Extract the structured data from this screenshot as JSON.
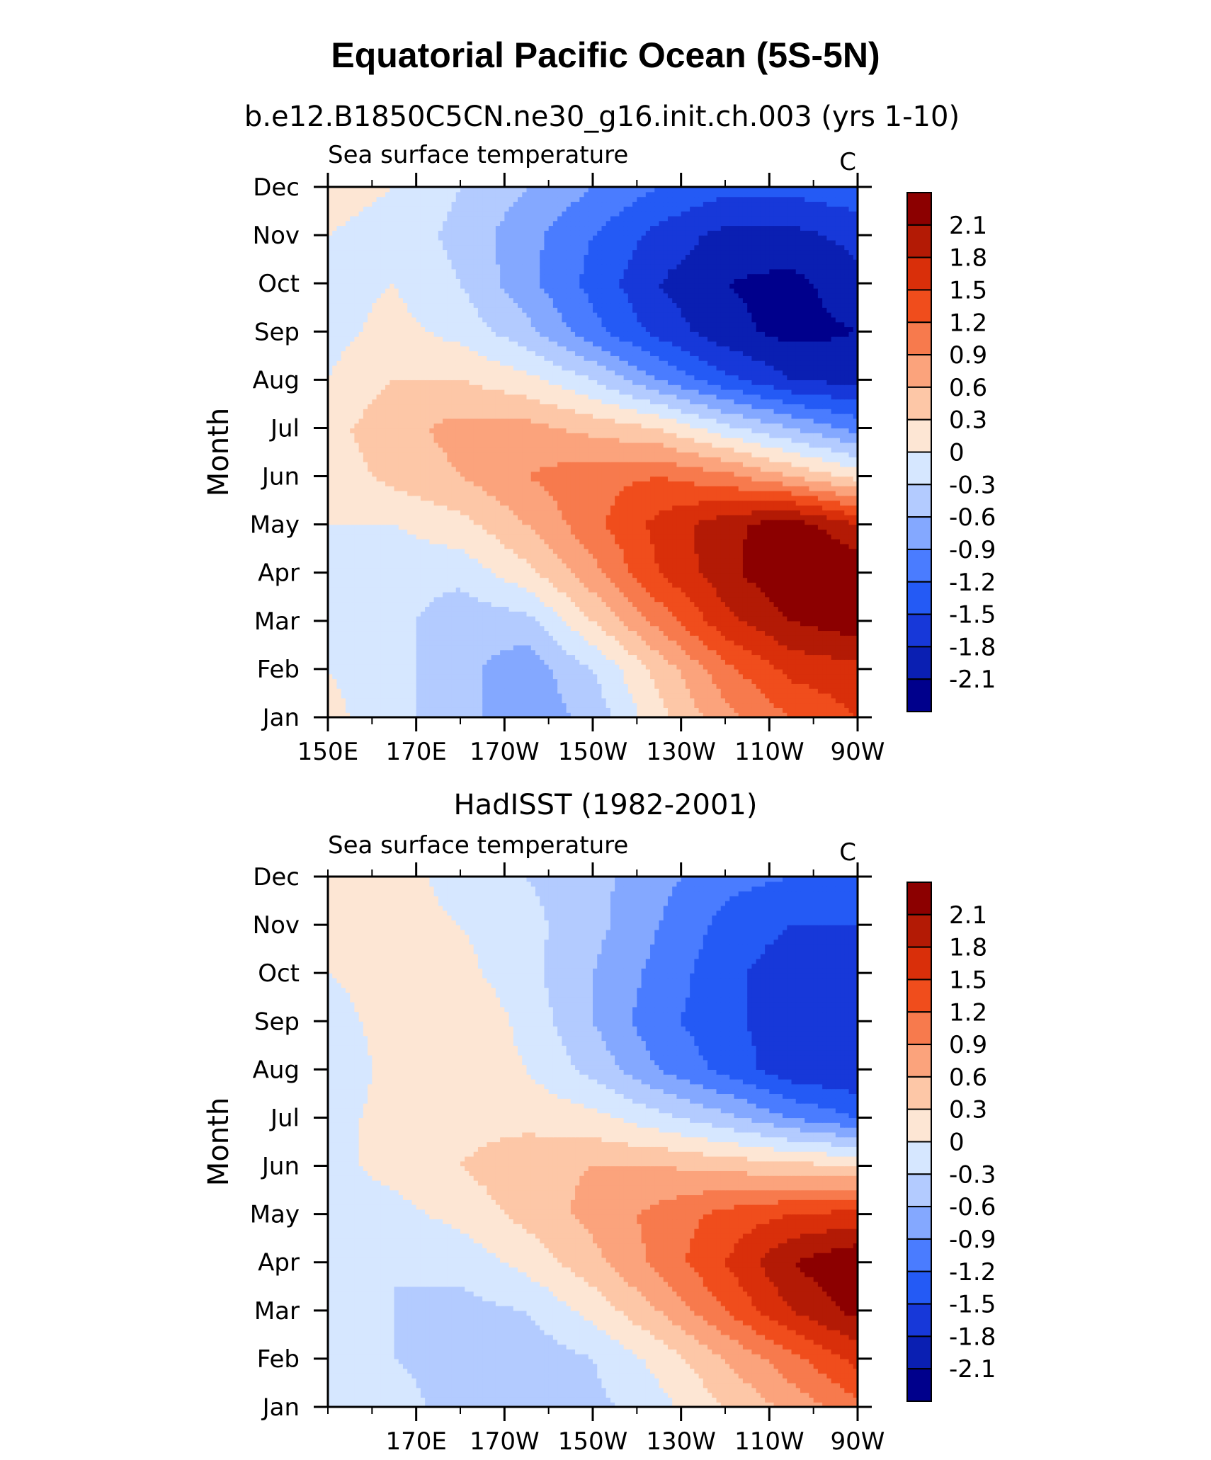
{
  "header": {
    "title": "Equatorial Pacific Ocean (5S-5N)",
    "case_title": "b.e12.B1850C5CN.ne30_g16.init.ch.003 (yrs 1-10)"
  },
  "colors": {
    "levels": [
      -2.1,
      -1.8,
      -1.5,
      -1.2,
      -0.9,
      -0.6,
      -0.3,
      0,
      0.3,
      0.6,
      0.9,
      1.2,
      1.5,
      1.8,
      2.1
    ],
    "fills": [
      "#00008c",
      "#0a1fb2",
      "#1738d9",
      "#245af5",
      "#4a7cff",
      "#84a8ff",
      "#b3cbff",
      "#d6e7ff",
      "#fde6d4",
      "#fdc7a7",
      "#fba37c",
      "#f77a4d",
      "#f04d1c",
      "#d92f0a",
      "#b31a05",
      "#8c0000"
    ]
  },
  "chart_data": [
    {
      "type": "heatmap",
      "panel_title": "",
      "left_label": "Sea surface temperature",
      "right_label": "C",
      "ylabel": "Month",
      "xlabel": "",
      "xlim": [
        150,
        270
      ],
      "x_ticks": [
        "150E",
        "170E",
        "170W",
        "150W",
        "130W",
        "110W",
        "90W"
      ],
      "y_ticks": [
        "Jan",
        "Feb",
        "Mar",
        "Apr",
        "May",
        "Jun",
        "Jul",
        "Aug",
        "Sep",
        "Oct",
        "Nov",
        "Dec"
      ],
      "colorbar_labels": [
        "2.1",
        "1.8",
        "1.5",
        "1.2",
        "0.9",
        "0.6",
        "0.3",
        "0",
        "-0.3",
        "-0.6",
        "-0.9",
        "-1.2",
        "-1.5",
        "-1.8",
        "-2.1"
      ],
      "lon": [
        150,
        165,
        180,
        195,
        210,
        225,
        240,
        255,
        270
      ],
      "months": [
        "Jan",
        "Feb",
        "Mar",
        "Apr",
        "May",
        "Jun",
        "Jul",
        "Aug",
        "Sep",
        "Oct",
        "Nov",
        "Dec"
      ],
      "values": [
        [
          0.1,
          -0.2,
          -0.5,
          -0.8,
          -0.5,
          0.2,
          0.8,
          1.2,
          1.5
        ],
        [
          0.0,
          -0.2,
          -0.5,
          -0.8,
          -0.3,
          0.4,
          1.1,
          1.6,
          1.7
        ],
        [
          -0.1,
          -0.2,
          -0.5,
          -0.4,
          0.3,
          1.0,
          1.7,
          2.1,
          2.3
        ],
        [
          -0.2,
          -0.2,
          -0.2,
          0.2,
          0.8,
          1.5,
          2.0,
          2.4,
          2.4
        ],
        [
          0.0,
          0.0,
          0.2,
          0.6,
          1.1,
          1.6,
          2.0,
          2.3,
          1.8
        ],
        [
          0.1,
          0.4,
          0.6,
          0.9,
          1.1,
          1.2,
          1.0,
          0.6,
          0.2
        ],
        [
          0.2,
          0.5,
          0.7,
          0.7,
          0.5,
          0.3,
          -0.2,
          -0.6,
          -1.0
        ],
        [
          0.0,
          0.3,
          0.3,
          0.1,
          -0.3,
          -0.9,
          -1.4,
          -1.8,
          -1.9
        ],
        [
          -0.1,
          0.1,
          -0.1,
          -0.5,
          -1.1,
          -1.6,
          -2.0,
          -2.2,
          -2.1
        ],
        [
          -0.1,
          0.0,
          -0.3,
          -0.8,
          -1.3,
          -1.8,
          -2.1,
          -2.2,
          -1.9
        ],
        [
          0.0,
          -0.1,
          -0.4,
          -0.8,
          -1.2,
          -1.6,
          -1.9,
          -1.9,
          -1.7
        ],
        [
          0.1,
          0.0,
          -0.3,
          -0.6,
          -0.9,
          -1.2,
          -1.4,
          -1.4,
          -1.3
        ]
      ]
    },
    {
      "type": "heatmap",
      "panel_title": "HadISST (1982-2001)",
      "left_label": "Sea surface temperature",
      "right_label": "C",
      "ylabel": "Month",
      "xlabel": "",
      "xlim": [
        150,
        270
      ],
      "x_ticks": [
        "170E",
        "170W",
        "150W",
        "130W",
        "110W",
        "90W"
      ],
      "y_ticks": [
        "Jan",
        "Feb",
        "Mar",
        "Apr",
        "May",
        "Jun",
        "Jul",
        "Aug",
        "Sep",
        "Oct",
        "Nov",
        "Dec"
      ],
      "colorbar_labels": [
        "2.1",
        "1.8",
        "1.5",
        "1.2",
        "0.9",
        "0.6",
        "0.3",
        "0",
        "-0.3",
        "-0.6",
        "-0.9",
        "-1.2",
        "-1.5",
        "-1.8",
        "-2.1"
      ],
      "lon": [
        150,
        165,
        180,
        195,
        210,
        225,
        240,
        255,
        270
      ],
      "months": [
        "Jan",
        "Feb",
        "Mar",
        "Apr",
        "May",
        "Jun",
        "Jul",
        "Aug",
        "Sep",
        "Oct",
        "Nov",
        "Dec"
      ],
      "values": [
        [
          0.0,
          -0.2,
          -0.4,
          -0.5,
          -0.4,
          -0.1,
          0.3,
          0.7,
          1.1
        ],
        [
          -0.1,
          -0.3,
          -0.4,
          -0.5,
          -0.3,
          0.1,
          0.6,
          1.1,
          1.6
        ],
        [
          -0.2,
          -0.3,
          -0.4,
          -0.3,
          0.1,
          0.6,
          1.2,
          1.8,
          2.2
        ],
        [
          -0.2,
          -0.3,
          -0.2,
          0.1,
          0.5,
          1.0,
          1.5,
          2.1,
          2.4
        ],
        [
          -0.1,
          -0.1,
          0.1,
          0.4,
          0.7,
          1.0,
          1.3,
          1.5,
          1.6
        ],
        [
          -0.1,
          0.1,
          0.3,
          0.5,
          0.6,
          0.6,
          0.5,
          0.4,
          0.3
        ],
        [
          -0.1,
          0.1,
          0.2,
          0.2,
          0.1,
          -0.2,
          -0.5,
          -0.9,
          -1.2
        ],
        [
          -0.2,
          0.1,
          0.2,
          0.0,
          -0.4,
          -0.9,
          -1.3,
          -1.7,
          -1.8
        ],
        [
          -0.1,
          0.1,
          0.3,
          -0.1,
          -0.6,
          -1.1,
          -1.4,
          -1.7,
          -1.8
        ],
        [
          0.0,
          0.1,
          0.1,
          -0.2,
          -0.6,
          -1.0,
          -1.4,
          -1.7,
          -1.7
        ],
        [
          0.1,
          0.1,
          0.0,
          -0.2,
          -0.5,
          -0.9,
          -1.3,
          -1.5,
          -1.5
        ],
        [
          0.1,
          0.1,
          -0.1,
          -0.3,
          -0.5,
          -0.8,
          -1.1,
          -1.2,
          -1.2
        ]
      ]
    }
  ]
}
